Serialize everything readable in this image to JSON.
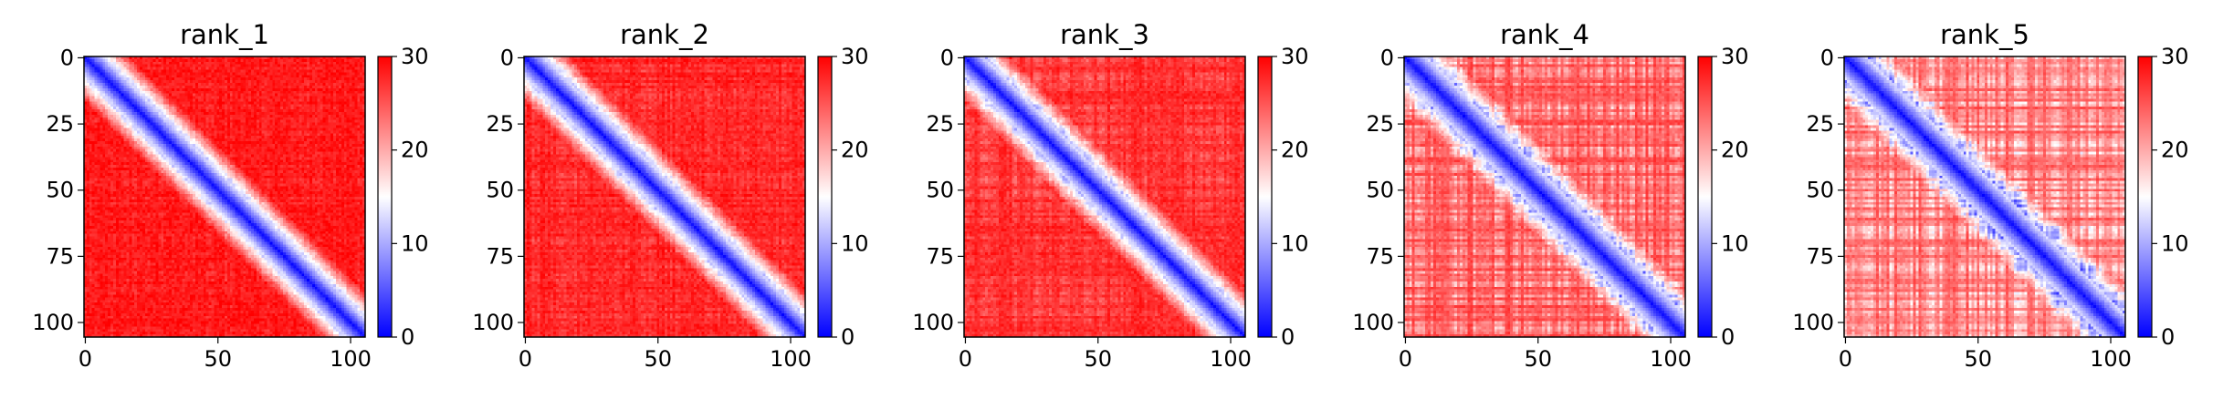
{
  "chart_data": [
    {
      "type": "heatmap",
      "title": "rank_1",
      "matrix_size": 106,
      "x_ticks": [
        "0",
        "50",
        "100"
      ],
      "y_ticks": [
        "0",
        "25",
        "50",
        "75",
        "100"
      ],
      "x_tick_values": [
        0,
        50,
        100
      ],
      "y_tick_values": [
        0,
        25,
        50,
        75,
        100
      ],
      "value_range": [
        0,
        30
      ],
      "colorbar_ticks": [
        "0",
        "10",
        "20",
        "30"
      ],
      "colorbar_tick_values": [
        0,
        10,
        20,
        30
      ],
      "colormap": "bwr",
      "diagonal_band_width": 7,
      "background_level": 29
    },
    {
      "type": "heatmap",
      "title": "rank_2",
      "matrix_size": 106,
      "x_ticks": [
        "0",
        "50",
        "100"
      ],
      "y_ticks": [
        "0",
        "25",
        "50",
        "75",
        "100"
      ],
      "x_tick_values": [
        0,
        50,
        100
      ],
      "y_tick_values": [
        0,
        25,
        50,
        75,
        100
      ],
      "value_range": [
        0,
        30
      ],
      "colorbar_ticks": [
        "0",
        "10",
        "20",
        "30"
      ],
      "colorbar_tick_values": [
        0,
        10,
        20,
        30
      ],
      "colormap": "bwr",
      "diagonal_band_width": 7,
      "background_level": 28.5
    },
    {
      "type": "heatmap",
      "title": "rank_3",
      "matrix_size": 106,
      "x_ticks": [
        "0",
        "50",
        "100"
      ],
      "y_ticks": [
        "0",
        "25",
        "50",
        "75",
        "100"
      ],
      "x_tick_values": [
        0,
        50,
        100
      ],
      "y_tick_values": [
        0,
        25,
        50,
        75,
        100
      ],
      "value_range": [
        0,
        30
      ],
      "colorbar_ticks": [
        "0",
        "10",
        "20",
        "30"
      ],
      "colorbar_tick_values": [
        0,
        10,
        20,
        30
      ],
      "colormap": "bwr",
      "diagonal_band_width": 7,
      "background_level": 28
    },
    {
      "type": "heatmap",
      "title": "rank_4",
      "matrix_size": 106,
      "x_ticks": [
        "0",
        "50",
        "100"
      ],
      "y_ticks": [
        "0",
        "25",
        "50",
        "75",
        "100"
      ],
      "x_tick_values": [
        0,
        50,
        100
      ],
      "y_tick_values": [
        0,
        25,
        50,
        75,
        100
      ],
      "value_range": [
        0,
        30
      ],
      "colorbar_ticks": [
        "0",
        "10",
        "20",
        "30"
      ],
      "colorbar_tick_values": [
        0,
        10,
        20,
        30
      ],
      "colormap": "bwr",
      "diagonal_band_width": 8,
      "background_level": 26
    },
    {
      "type": "heatmap",
      "title": "rank_5",
      "matrix_size": 106,
      "x_ticks": [
        "0",
        "50",
        "100"
      ],
      "y_ticks": [
        "0",
        "25",
        "50",
        "75",
        "100"
      ],
      "x_tick_values": [
        0,
        50,
        100
      ],
      "y_tick_values": [
        0,
        25,
        50,
        75,
        100
      ],
      "value_range": [
        0,
        30
      ],
      "colorbar_ticks": [
        "0",
        "10",
        "20",
        "30"
      ],
      "colorbar_tick_values": [
        0,
        10,
        20,
        30
      ],
      "colormap": "bwr",
      "diagonal_band_width": 8,
      "background_level": 25
    }
  ]
}
